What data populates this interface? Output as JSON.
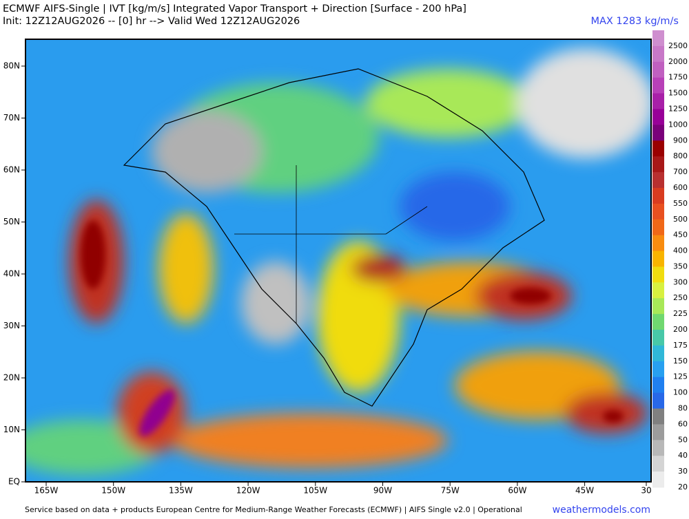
{
  "header": {
    "title": "ECMWF AIFS-Single | IVT [kg/m/s] Integrated Vapor Transport + Direction [Surface - 200 hPa]",
    "subtitle": "Init: 12Z12AUG2026 -- [0] hr --> Valid Wed 12Z12AUG2026",
    "max_label": "MAX 1283 kg/m/s"
  },
  "map": {
    "lat_labels": [
      "80N",
      "70N",
      "60N",
      "50N",
      "40N",
      "30N",
      "20N",
      "10N",
      "EQ"
    ],
    "lon_labels": [
      "165W",
      "150W",
      "135W",
      "120W",
      "105W",
      "90W",
      "75W",
      "60W",
      "45W",
      "30"
    ]
  },
  "colorbar": {
    "levels": [
      {
        "label": "2500",
        "color": "#cf8fcf"
      },
      {
        "label": "2000",
        "color": "#c878c8"
      },
      {
        "label": "1750",
        "color": "#c060c0"
      },
      {
        "label": "1500",
        "color": "#b840b8"
      },
      {
        "label": "1250",
        "color": "#a820a8"
      },
      {
        "label": "1000",
        "color": "#980098"
      },
      {
        "label": "900",
        "color": "#7a007a"
      },
      {
        "label": "800",
        "color": "#9a0000"
      },
      {
        "label": "700",
        "color": "#a81818"
      },
      {
        "label": "600",
        "color": "#b83030"
      },
      {
        "label": "550",
        "color": "#d83c20"
      },
      {
        "label": "500",
        "color": "#e85020"
      },
      {
        "label": "450",
        "color": "#f06818"
      },
      {
        "label": "400",
        "color": "#f88c10"
      },
      {
        "label": "350",
        "color": "#f8b400"
      },
      {
        "label": "300",
        "color": "#f0dc10"
      },
      {
        "label": "250",
        "color": "#d8f040"
      },
      {
        "label": "225",
        "color": "#a8e858"
      },
      {
        "label": "200",
        "color": "#70d870"
      },
      {
        "label": "175",
        "color": "#48c8a8"
      },
      {
        "label": "150",
        "color": "#30b8d8"
      },
      {
        "label": "125",
        "color": "#28a0f0"
      },
      {
        "label": "100",
        "color": "#2080f0"
      },
      {
        "label": "80",
        "color": "#2868e8"
      },
      {
        "label": "60",
        "color": "#808080"
      },
      {
        "label": "50",
        "color": "#9c9c9c"
      },
      {
        "label": "40",
        "color": "#b8b8b8"
      },
      {
        "label": "30",
        "color": "#d4d4d4"
      },
      {
        "label": "20",
        "color": "#ececec"
      }
    ]
  },
  "footer": {
    "credit": "Service based on data + products European Centre for Medium-Range Weather Forecasts (ECMWF) | AIFS Single v2.0 | Operational",
    "site": "weathermodels.com"
  }
}
